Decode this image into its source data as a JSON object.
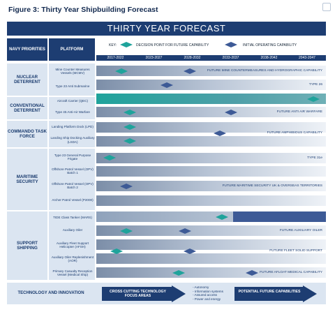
{
  "figure_title": "Figure 3:  Thirty Year Shipbuilding Forecast",
  "banner_title": "THIRTY YEAR FORECAST",
  "headers": {
    "priorities": "NAVY PRIORITIES",
    "platform": "PLATFORM"
  },
  "key": {
    "label": "KEY:",
    "decision_point": "DECISION POINT FOR FUTURE CAPABILITY",
    "initial_operating": "INITIAL OPERATING CAPABILITY",
    "decision_color": "#1fa39b",
    "ioc_color": "#3d5a96"
  },
  "periods": [
    "2017-2022",
    "2023-2027",
    "2028-2032",
    "2033-2037",
    "2038-2042",
    "2043-2047"
  ],
  "groups": [
    {
      "label": "NUCLEAR DETERRENT"
    },
    {
      "label": "CONVENTIONAL DETERRENT"
    },
    {
      "label": "COMMANDO TASK FORCE"
    },
    {
      "label": "MARITIME SECURITY"
    },
    {
      "label": "SUPPORT SHIPPING"
    }
  ],
  "platforms": [
    {
      "name": "Mine Counter Measures Vessels (MCMV)",
      "note": "FUTURE MINE COUNTERMEASURES AND HYDROGRAPHIC CAPABILITY"
    },
    {
      "name": "Type 23 Anti Submarine",
      "note": "TYPE 26"
    },
    {
      "name": "Aircraft Carrier (QEC)",
      "note": ""
    },
    {
      "name": "Type 45 Anti-Air Warfare",
      "note": "FUTURE ANTI AIR WARFARE"
    },
    {
      "name": "Landing Platform Dock (LPD)",
      "note": ""
    },
    {
      "name": "Landing Ship Docking Auxiliary (LSDA)",
      "note": "FUTURE AMPHIBIOUS CAPABILITY"
    },
    {
      "name": "Type 23 General Purpose Frigate",
      "note": "TYPE 31e"
    },
    {
      "name": "Offshore Patrol Vessel (OPV) Batch 1",
      "note": ""
    },
    {
      "name": "Offshore Patrol Vessel (OPV) Batch 2",
      "note": "FUTURE MARITIME SECURITY UK & OVERSEAS TERRITORIES"
    },
    {
      "name": "Archer Patrol Vessel (P2000)",
      "note": ""
    },
    {
      "name": "TIDE Class Tanker (MARS)",
      "note": ""
    },
    {
      "name": "Auxiliary Oiler",
      "note": "FUTURE AUXILIARY OILER"
    },
    {
      "name": "Auxiliary Fleet Support Helicopter (AFSH)",
      "note": ""
    },
    {
      "name": "Auxiliary Oiler Replenishment (AOR)",
      "note": "FUTURE FLEET SOLID SUPPORT"
    },
    {
      "name": "Primary Casualty Reception Vessel (Medical Ship)",
      "note": "FUTURE AFLOAT MEDICAL CAPABILITY"
    }
  ],
  "technology": {
    "title": "TECHNOLOGY AND INNOVATION",
    "arrow1": "CROSS CUTTING TECHNOLOGY FOCUS AREAS",
    "bullets": [
      "- Autonomy",
      "- Information systems",
      "- Assured access",
      "- Power and energy"
    ],
    "arrow2": "POTENTIAL FUTURE CAPABILITIES"
  }
}
